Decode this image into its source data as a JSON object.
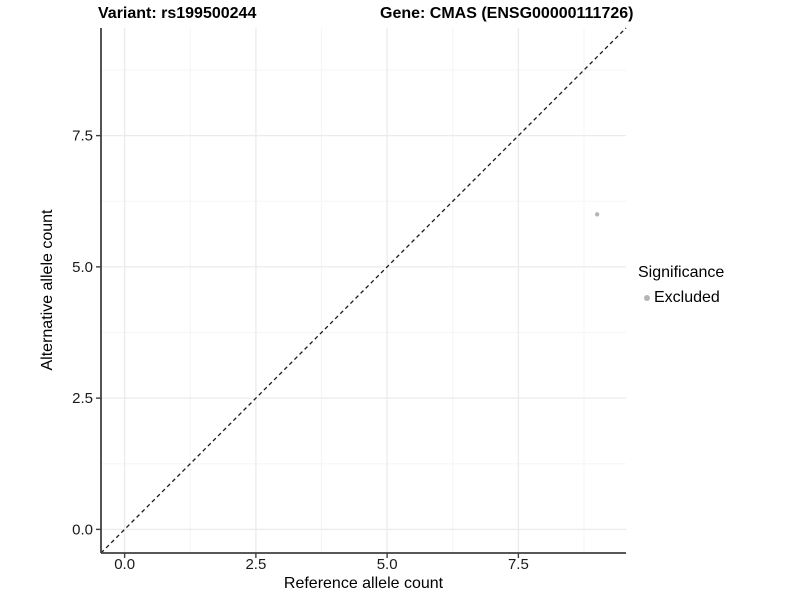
{
  "figure": {
    "title_left": "Variant: rs199500244",
    "title_right": "Gene: CMAS (ENSG00000111726)"
  },
  "legend": {
    "title": "Significance",
    "items": [
      {
        "label": "Excluded",
        "color": "#b5b5b5"
      }
    ]
  },
  "chart_data": {
    "type": "scatter",
    "title": "Variant: rs199500244   Gene: CMAS (ENSG00000111726)",
    "xlabel": "Reference allele count",
    "ylabel": "Alternative allele count",
    "xlim": [
      -0.45,
      9.55
    ],
    "ylim": [
      -0.45,
      9.55
    ],
    "x_ticks": [
      0,
      2.5,
      5,
      7.5
    ],
    "y_ticks": [
      0,
      2.5,
      5,
      7.5
    ],
    "x_tick_labels": [
      "0.0",
      "2.5",
      "5.0",
      "7.5"
    ],
    "y_tick_labels": [
      "0.0",
      "2.5",
      "5.0",
      "7.5"
    ],
    "x_minor_ticks": [
      1.25,
      3.75,
      6.25,
      8.75
    ],
    "y_minor_ticks": [
      1.25,
      3.75,
      6.25,
      8.75
    ],
    "grid": true,
    "legend_position": "right",
    "series": [
      {
        "name": "Excluded",
        "color": "#b5b5b5",
        "points": [
          {
            "x": 9,
            "y": 6
          }
        ]
      }
    ],
    "reference_line": {
      "type": "identity",
      "style": "dashed",
      "color": "#1a1a1a"
    },
    "colors": {
      "background": "#ffffff",
      "grid_major": "#ebebeb",
      "grid_minor": "#f5f5f5",
      "axis_line": "#404040",
      "tick_label": "#1a1a1a"
    }
  }
}
